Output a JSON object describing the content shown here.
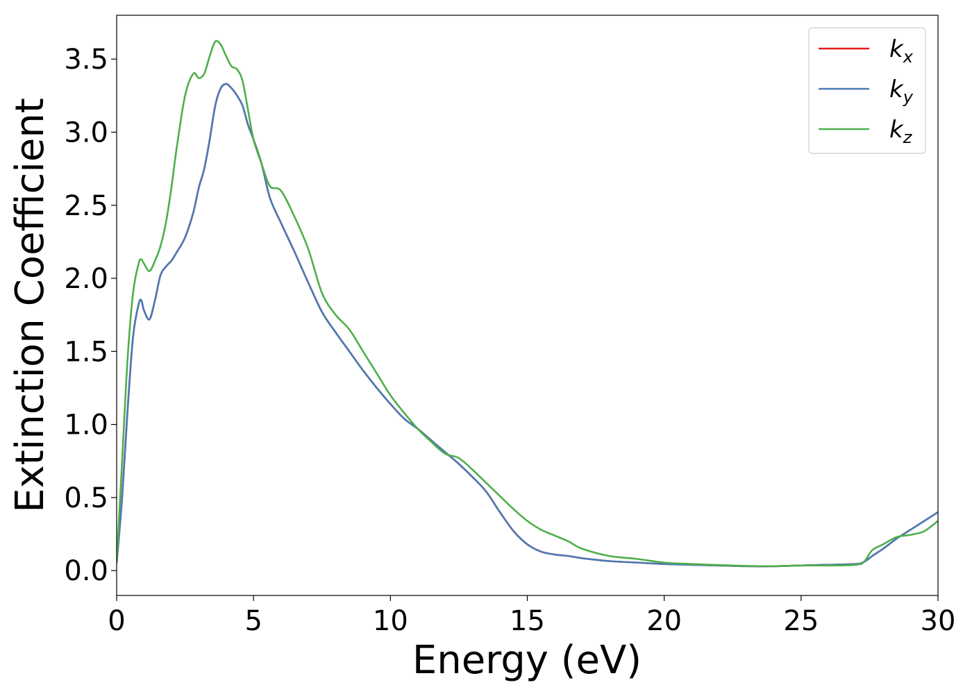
{
  "chart_data": {
    "type": "line",
    "xlabel": "Energy (eV)",
    "ylabel": "Extinction Coefficient",
    "xlim": [
      0,
      30
    ],
    "ylim": [
      -0.17,
      3.8
    ],
    "xticks": [
      0,
      5,
      10,
      15,
      20,
      25,
      30
    ],
    "xtick_labels": [
      "0",
      "5",
      "10",
      "15",
      "20",
      "25",
      "30"
    ],
    "yticks": [
      0.0,
      0.5,
      1.0,
      1.5,
      2.0,
      2.5,
      3.0,
      3.5
    ],
    "ytick_labels": [
      "0.0",
      "0.5",
      "1.0",
      "1.5",
      "2.0",
      "2.5",
      "3.0",
      "3.5"
    ],
    "grid": false,
    "legend_position": "top-right",
    "series": [
      {
        "name": "k_x",
        "label_base": "k",
        "label_sub": "x",
        "color": "#e41a1c",
        "x": [
          0,
          0.2,
          0.4,
          0.6,
          0.8,
          0.9,
          1.0,
          1.2,
          1.4,
          1.6,
          1.8,
          2.0,
          2.2,
          2.5,
          2.8,
          3.0,
          3.2,
          3.4,
          3.6,
          3.8,
          4.0,
          4.2,
          4.4,
          4.6,
          4.8,
          5.0,
          5.3,
          5.6,
          6.0,
          6.5,
          7.0,
          7.5,
          8.0,
          8.5,
          9.0,
          9.5,
          10.0,
          10.5,
          11.0,
          11.5,
          12.0,
          12.5,
          13.0,
          13.5,
          14.0,
          14.5,
          15.0,
          15.5,
          16.0,
          16.5,
          17.0,
          18.0,
          19.0,
          20.0,
          21.0,
          22.0,
          23.0,
          24.0,
          25.0,
          26.0,
          27.0,
          27.3,
          27.6,
          28.0,
          28.5,
          29.0,
          29.5,
          30.0
        ],
        "y": [
          0.05,
          0.5,
          1.1,
          1.6,
          1.82,
          1.85,
          1.78,
          1.72,
          1.85,
          2.02,
          2.08,
          2.12,
          2.18,
          2.28,
          2.45,
          2.62,
          2.75,
          2.95,
          3.18,
          3.3,
          3.33,
          3.3,
          3.25,
          3.18,
          3.05,
          2.95,
          2.78,
          2.55,
          2.38,
          2.18,
          1.97,
          1.77,
          1.63,
          1.5,
          1.37,
          1.25,
          1.14,
          1.04,
          0.97,
          0.89,
          0.81,
          0.73,
          0.64,
          0.54,
          0.4,
          0.27,
          0.18,
          0.13,
          0.11,
          0.1,
          0.085,
          0.065,
          0.055,
          0.045,
          0.04,
          0.035,
          0.03,
          0.03,
          0.035,
          0.04,
          0.045,
          0.06,
          0.1,
          0.15,
          0.22,
          0.28,
          0.34,
          0.4
        ]
      },
      {
        "name": "k_y",
        "label_base": "k",
        "label_sub": "y",
        "color": "#4a7ab5",
        "x": [
          0,
          0.2,
          0.4,
          0.6,
          0.8,
          0.9,
          1.0,
          1.2,
          1.4,
          1.6,
          1.8,
          2.0,
          2.2,
          2.5,
          2.8,
          3.0,
          3.2,
          3.4,
          3.6,
          3.8,
          4.0,
          4.2,
          4.4,
          4.6,
          4.8,
          5.0,
          5.3,
          5.6,
          6.0,
          6.5,
          7.0,
          7.5,
          8.0,
          8.5,
          9.0,
          9.5,
          10.0,
          10.5,
          11.0,
          11.5,
          12.0,
          12.5,
          13.0,
          13.5,
          14.0,
          14.5,
          15.0,
          15.5,
          16.0,
          16.5,
          17.0,
          18.0,
          19.0,
          20.0,
          21.0,
          22.0,
          23.0,
          24.0,
          25.0,
          26.0,
          27.0,
          27.3,
          27.6,
          28.0,
          28.5,
          29.0,
          29.5,
          30.0
        ],
        "y": [
          0.05,
          0.5,
          1.1,
          1.6,
          1.82,
          1.85,
          1.78,
          1.72,
          1.85,
          2.02,
          2.08,
          2.12,
          2.18,
          2.28,
          2.45,
          2.62,
          2.75,
          2.95,
          3.18,
          3.3,
          3.33,
          3.3,
          3.25,
          3.18,
          3.05,
          2.95,
          2.78,
          2.55,
          2.38,
          2.18,
          1.97,
          1.77,
          1.63,
          1.5,
          1.37,
          1.25,
          1.14,
          1.04,
          0.97,
          0.89,
          0.81,
          0.73,
          0.64,
          0.54,
          0.4,
          0.27,
          0.18,
          0.13,
          0.11,
          0.1,
          0.085,
          0.065,
          0.055,
          0.045,
          0.04,
          0.035,
          0.03,
          0.03,
          0.035,
          0.04,
          0.045,
          0.06,
          0.1,
          0.15,
          0.22,
          0.28,
          0.34,
          0.4
        ]
      },
      {
        "name": "k_z",
        "label_base": "k",
        "label_sub": "z",
        "color": "#4daf4a",
        "x": [
          0,
          0.2,
          0.4,
          0.6,
          0.8,
          0.9,
          1.0,
          1.2,
          1.4,
          1.6,
          1.8,
          2.0,
          2.2,
          2.5,
          2.8,
          3.0,
          3.2,
          3.4,
          3.6,
          3.8,
          4.0,
          4.2,
          4.4,
          4.6,
          4.8,
          5.0,
          5.3,
          5.6,
          6.0,
          6.5,
          7.0,
          7.5,
          8.0,
          8.5,
          9.0,
          9.5,
          10.0,
          10.5,
          11.0,
          11.5,
          12.0,
          12.5,
          13.0,
          13.5,
          14.0,
          14.5,
          15.0,
          15.5,
          16.0,
          16.5,
          17.0,
          18.0,
          19.0,
          20.0,
          21.0,
          22.0,
          23.0,
          24.0,
          25.0,
          26.0,
          27.0,
          27.3,
          27.6,
          28.0,
          28.5,
          29.0,
          29.5,
          30.0
        ],
        "y": [
          0.05,
          0.75,
          1.45,
          1.9,
          2.1,
          2.13,
          2.1,
          2.05,
          2.12,
          2.22,
          2.38,
          2.62,
          2.9,
          3.25,
          3.4,
          3.37,
          3.4,
          3.52,
          3.62,
          3.6,
          3.52,
          3.45,
          3.43,
          3.35,
          3.15,
          2.95,
          2.78,
          2.63,
          2.6,
          2.42,
          2.2,
          1.9,
          1.75,
          1.65,
          1.5,
          1.35,
          1.2,
          1.08,
          0.97,
          0.88,
          0.8,
          0.77,
          0.69,
          0.6,
          0.51,
          0.42,
          0.34,
          0.28,
          0.24,
          0.2,
          0.15,
          0.1,
          0.08,
          0.055,
          0.045,
          0.038,
          0.032,
          0.03,
          0.035,
          0.035,
          0.04,
          0.06,
          0.14,
          0.18,
          0.23,
          0.245,
          0.27,
          0.34
        ]
      }
    ]
  }
}
